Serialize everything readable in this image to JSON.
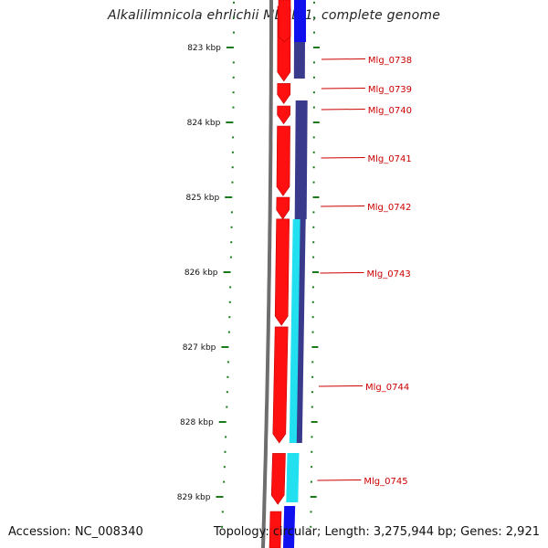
{
  "title": "Alkalilimnicola ehrlichii MLHE-1, complete genome",
  "accession": "Accession: NC_008340",
  "topology": "Topology: circular; Length: 3,275,944 bp; Genes: 2,921",
  "ruler": {
    "ticks": [
      {
        "kbp": 823,
        "label": "823 kbp"
      },
      {
        "kbp": 824,
        "label": "824 kbp"
      },
      {
        "kbp": 825,
        "label": "825 kbp"
      },
      {
        "kbp": 826,
        "label": "826 kbp"
      },
      {
        "kbp": 827,
        "label": "827 kbp"
      },
      {
        "kbp": 828,
        "label": "828 kbp"
      },
      {
        "kbp": 829,
        "label": "829 kbp"
      }
    ]
  },
  "genes": [
    {
      "name": "Mlg_0738",
      "start_kbp": 822.45,
      "end_kbp": 823.45
    },
    {
      "name": "Mlg_0739",
      "start_kbp": 823.48,
      "end_kbp": 823.75
    },
    {
      "name": "Mlg_0740",
      "start_kbp": 823.78,
      "end_kbp": 824.02
    },
    {
      "name": "Mlg_0741",
      "start_kbp": 824.05,
      "end_kbp": 824.98
    },
    {
      "name": "Mlg_0742",
      "start_kbp": 825.0,
      "end_kbp": 825.29
    },
    {
      "name": "Mlg_0743",
      "start_kbp": 825.29,
      "end_kbp": 826.71
    },
    {
      "name": "Mlg_0744",
      "start_kbp": 826.73,
      "end_kbp": 828.28
    },
    {
      "name": "Mlg_0745",
      "start_kbp": 828.42,
      "end_kbp": 829.1
    }
  ],
  "colors": {
    "cds": "#ff1010",
    "cds_dark": "#c00000",
    "backbone": "#6e6e6e",
    "ruler_green": "#1a7a1a",
    "blast_blue": "#1010ee",
    "blast_navy": "#3a3a8c",
    "blast_cyan": "#22e0f0",
    "label_red": "#cc0000"
  }
}
